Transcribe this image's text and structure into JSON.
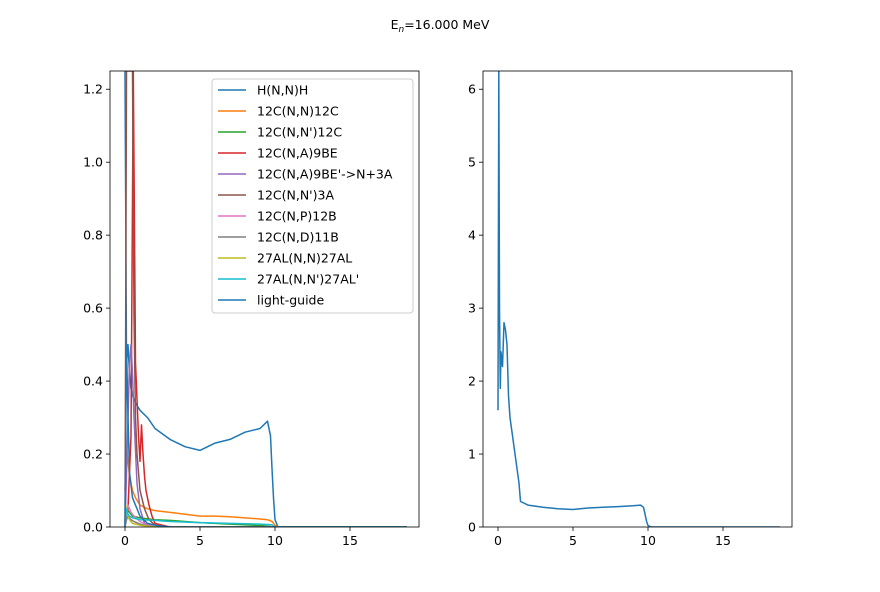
{
  "figure": {
    "suptitle_main": "E",
    "suptitle_sub": "n",
    "suptitle_rest": "=16.000 MeV"
  },
  "chart_data": [
    {
      "type": "line",
      "panel": "left",
      "xlim": [
        -1,
        19.6
      ],
      "ylim": [
        0,
        1.25
      ],
      "x_ticks": [
        0,
        5,
        10,
        15
      ],
      "y_ticks": [
        0.0,
        0.2,
        0.4,
        0.6,
        0.8,
        1.0,
        1.2
      ],
      "x_tick_labels": [
        "0",
        "5",
        "10",
        "15"
      ],
      "y_tick_labels": [
        "0.0",
        "0.2",
        "0.4",
        "0.6",
        "0.8",
        "1.0",
        "1.2"
      ],
      "legend_position": "upper-right",
      "series": [
        {
          "name": "H(N,N)H",
          "color": "#1f77b4",
          "x": [
            0.0,
            0.1,
            0.2,
            0.3,
            0.4,
            0.5,
            0.7,
            1.0,
            1.5,
            2.0,
            3.0,
            4.0,
            5.0,
            6.0,
            7.0,
            8.0,
            9.0,
            9.5,
            9.7,
            9.8,
            9.9,
            10.0,
            10.2,
            12.0,
            15.0,
            18.8
          ],
          "y": [
            1.25,
            0.45,
            0.5,
            0.42,
            0.38,
            0.36,
            0.34,
            0.32,
            0.3,
            0.27,
            0.24,
            0.22,
            0.21,
            0.23,
            0.24,
            0.26,
            0.27,
            0.29,
            0.25,
            0.16,
            0.08,
            0.02,
            0.0,
            0.0,
            0.0,
            0.0
          ]
        },
        {
          "name": "12C(N,N)12C",
          "color": "#ff7f0e",
          "x": [
            0.0,
            0.1,
            0.2,
            0.3,
            0.4,
            0.5,
            0.7,
            1.0,
            1.5,
            2.0,
            3.0,
            4.0,
            5.0,
            6.0,
            7.0,
            8.0,
            9.0,
            9.5,
            9.8,
            10.0,
            10.2,
            12.0,
            18.8
          ],
          "y": [
            0.1,
            0.22,
            0.18,
            0.14,
            0.12,
            0.1,
            0.08,
            0.06,
            0.05,
            0.045,
            0.04,
            0.035,
            0.03,
            0.03,
            0.028,
            0.025,
            0.022,
            0.02,
            0.015,
            0.005,
            0.0,
            0.0,
            0.0
          ]
        },
        {
          "name": "12C(N,N')12C",
          "color": "#2ca02c",
          "x": [
            0.0,
            0.1,
            0.3,
            0.5,
            1.0,
            2.0,
            3.0,
            4.0,
            5.0,
            7.0,
            9.0,
            10.0,
            18.8
          ],
          "y": [
            0.01,
            0.05,
            0.04,
            0.03,
            0.025,
            0.02,
            0.018,
            0.015,
            0.012,
            0.008,
            0.004,
            0.0,
            0.0
          ]
        },
        {
          "name": "12C(N,A)9BE",
          "color": "#d62728",
          "x": [
            0.0,
            0.2,
            0.4,
            0.55,
            0.7,
            0.9,
            1.0,
            1.1,
            1.2,
            1.3,
            1.4,
            1.6,
            1.8,
            2.0,
            3.0,
            5.0,
            18.8
          ],
          "y": [
            0.0,
            0.05,
            0.25,
            1.25,
            0.45,
            0.25,
            0.18,
            0.28,
            0.2,
            0.14,
            0.1,
            0.06,
            0.03,
            0.01,
            0.0,
            0.0,
            0.0
          ]
        },
        {
          "name": "12C(N,A)9BE'->N+3A",
          "color": "#9467bd",
          "x": [
            0.0,
            0.1,
            0.2,
            0.3,
            0.4,
            0.5,
            0.6,
            0.8,
            1.0,
            1.3,
            2.0,
            18.8
          ],
          "y": [
            0.0,
            0.15,
            0.3,
            0.45,
            0.5,
            0.42,
            0.3,
            0.12,
            0.05,
            0.01,
            0.0,
            0.0
          ]
        },
        {
          "name": "12C(N,N')3A",
          "color": "#8c564b",
          "x": [
            0.0,
            0.1,
            0.2,
            0.3,
            0.4,
            0.5,
            0.6,
            0.7,
            0.8,
            1.0,
            1.3,
            1.6,
            2.0,
            3.0,
            18.8
          ],
          "y": [
            0.0,
            1.25,
            1.25,
            1.25,
            1.25,
            1.25,
            0.58,
            0.3,
            0.2,
            0.1,
            0.05,
            0.02,
            0.005,
            0.0,
            0.0
          ]
        },
        {
          "name": "12C(N,P)12B",
          "color": "#e377c2",
          "x": [
            0.0,
            0.1,
            0.2,
            0.4,
            0.6,
            1.0,
            1.5,
            2.0,
            18.8
          ],
          "y": [
            0.0,
            0.04,
            0.06,
            0.04,
            0.03,
            0.015,
            0.005,
            0.0,
            0.0
          ]
        },
        {
          "name": "12C(N,D)11B",
          "color": "#7f7f7f",
          "x": [
            0.0,
            0.1,
            0.2,
            0.4,
            0.6,
            1.0,
            1.5,
            2.0,
            18.8
          ],
          "y": [
            0.0,
            0.02,
            0.03,
            0.02,
            0.015,
            0.008,
            0.003,
            0.0,
            0.0
          ]
        },
        {
          "name": "27AL(N,N)27AL",
          "color": "#bcbd22",
          "x": [
            0.0,
            0.05,
            0.1,
            0.2,
            0.3,
            0.5,
            1.0,
            2.0,
            18.8
          ],
          "y": [
            0.0,
            0.06,
            0.04,
            0.03,
            0.02,
            0.01,
            0.005,
            0.0,
            0.0
          ]
        },
        {
          "name": "27AL(N,N')27AL'",
          "color": "#17becf",
          "x": [
            0.0,
            0.1,
            0.2,
            0.3,
            0.5,
            1.0,
            2.0,
            3.0,
            5.0,
            7.0,
            9.0,
            9.8,
            10.0,
            18.8
          ],
          "y": [
            0.01,
            0.05,
            0.035,
            0.03,
            0.025,
            0.02,
            0.018,
            0.015,
            0.012,
            0.01,
            0.008,
            0.006,
            0.0,
            0.0
          ]
        },
        {
          "name": "light-guide",
          "color": "#1f77b4",
          "x": [
            0.0,
            0.1,
            0.2,
            0.3,
            0.5,
            1.0,
            1.5,
            2.0,
            3.0,
            18.8
          ],
          "y": [
            0.0,
            0.5,
            0.3,
            0.15,
            0.08,
            0.03,
            0.01,
            0.005,
            0.0,
            0.0
          ]
        }
      ]
    },
    {
      "type": "line",
      "panel": "right",
      "xlim": [
        -1,
        19.6
      ],
      "ylim": [
        0,
        6.25
      ],
      "x_ticks": [
        0,
        5,
        10,
        15
      ],
      "y_ticks": [
        0,
        1,
        2,
        3,
        4,
        5,
        6
      ],
      "x_tick_labels": [
        "0",
        "5",
        "10",
        "15"
      ],
      "y_tick_labels": [
        "0",
        "1",
        "2",
        "3",
        "4",
        "5",
        "6"
      ],
      "series": [
        {
          "color": "#1f77b4",
          "x": [
            0.0,
            0.05,
            0.1,
            0.15,
            0.2,
            0.3,
            0.4,
            0.5,
            0.6,
            0.7,
            0.8,
            1.0,
            1.2,
            1.4,
            1.5,
            2.0,
            3.0,
            4.0,
            5.0,
            6.0,
            7.0,
            8.0,
            9.0,
            9.5,
            9.7,
            9.8,
            9.9,
            10.0,
            10.2,
            12.0,
            15.0,
            18.8
          ],
          "y": [
            1.6,
            6.25,
            3.0,
            1.9,
            2.4,
            2.2,
            2.8,
            2.7,
            2.5,
            1.8,
            1.5,
            1.2,
            0.9,
            0.6,
            0.35,
            0.3,
            0.27,
            0.25,
            0.24,
            0.26,
            0.27,
            0.28,
            0.29,
            0.3,
            0.27,
            0.18,
            0.08,
            0.02,
            0.0,
            0.0,
            0.0,
            0.0
          ]
        }
      ]
    }
  ]
}
